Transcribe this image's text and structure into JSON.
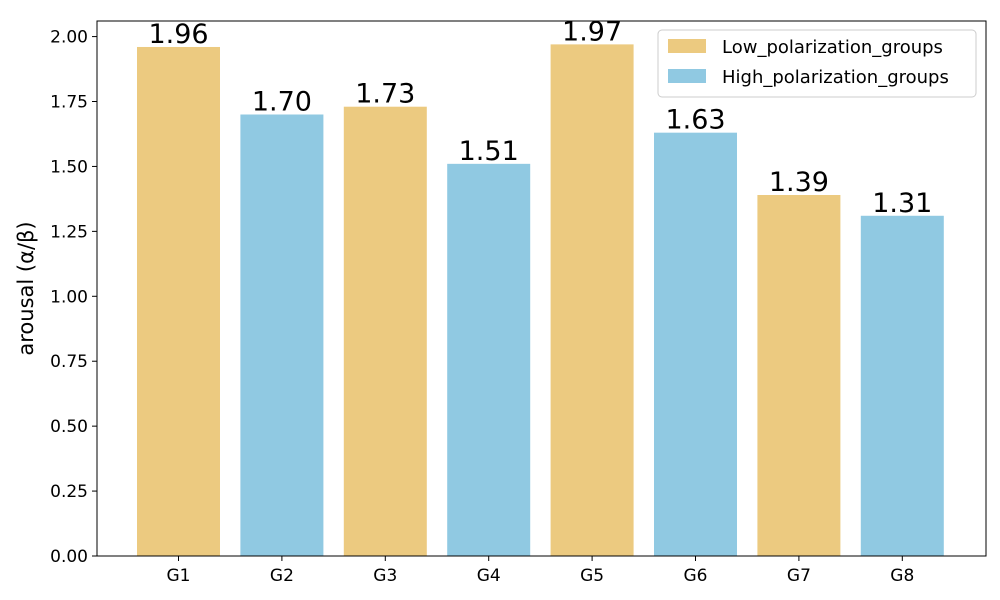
{
  "chart_data": {
    "type": "bar",
    "categories": [
      "G1",
      "G2",
      "G3",
      "G4",
      "G5",
      "G6",
      "G7",
      "G8"
    ],
    "values": [
      1.96,
      1.7,
      1.73,
      1.51,
      1.97,
      1.63,
      1.39,
      1.31
    ],
    "value_labels": [
      "1.96",
      "1.70",
      "1.73",
      "1.51",
      "1.97",
      "1.63",
      "1.39",
      "1.31"
    ],
    "bar_groups": [
      "Low_polarization_groups",
      "High_polarization_groups",
      "Low_polarization_groups",
      "High_polarization_groups",
      "Low_polarization_groups",
      "High_polarization_groups",
      "Low_polarization_groups",
      "High_polarization_groups"
    ],
    "title": "",
    "xlabel": "",
    "ylabel": "arousal (α/β)",
    "ylim": [
      0,
      2.06
    ],
    "yticks": [
      0.0,
      0.25,
      0.5,
      0.75,
      1.0,
      1.25,
      1.5,
      1.75,
      2.0
    ],
    "ytick_labels": [
      "0.00",
      "0.25",
      "0.50",
      "0.75",
      "1.00",
      "1.25",
      "1.50",
      "1.75",
      "2.00"
    ],
    "grid": false,
    "legend": {
      "placement": "top-right",
      "entries": [
        {
          "name": "Low_polarization_groups",
          "color": "#ecca80"
        },
        {
          "name": "High_polarization_groups",
          "color": "#90c9e2"
        }
      ]
    }
  }
}
